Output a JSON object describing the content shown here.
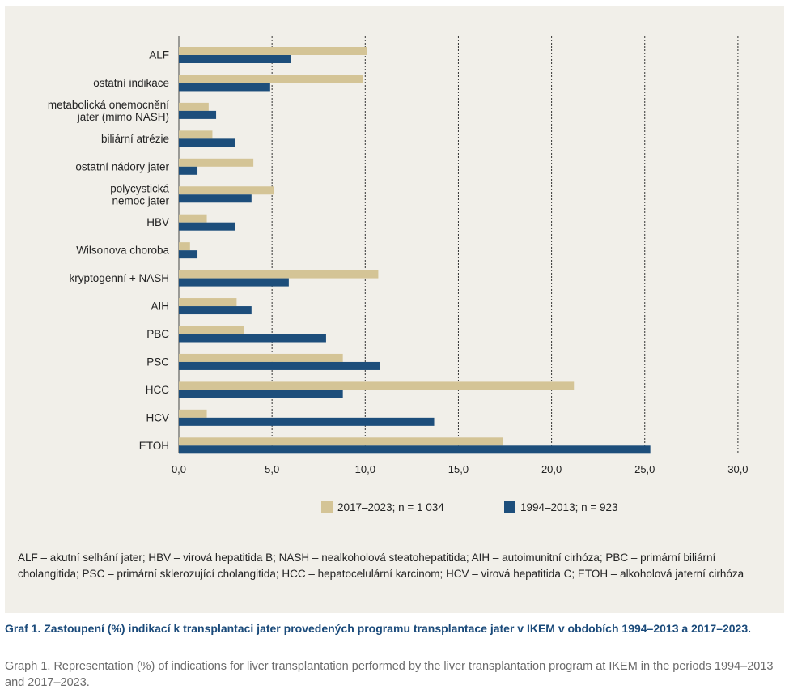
{
  "colors": {
    "series_2017": "#d4c496",
    "series_1994": "#1d4e7b",
    "panel_bg": "#f1efe9",
    "caption": "#1a4a7a"
  },
  "chart_data": {
    "type": "bar",
    "orientation": "horizontal",
    "categories": [
      "ALF",
      "ostatní indikace",
      "metabolická onemocnění\njater (mimo NASH)",
      "biliární atrézie",
      "ostatní nádory jater",
      "polycystická\nnemoc jater",
      "HBV",
      "Wilsonova choroba",
      "kryptogenní + NASH",
      "AIH",
      "PBC",
      "PSC",
      "HCC",
      "HCV",
      "ETOH"
    ],
    "series": [
      {
        "name": "2017–2023; n = 1 034",
        "color": "#d4c496",
        "values": [
          10.1,
          9.9,
          1.6,
          1.8,
          4.0,
          5.1,
          1.5,
          0.6,
          10.7,
          3.1,
          3.5,
          8.8,
          21.2,
          1.5,
          17.4
        ]
      },
      {
        "name": "1994–2013; n = 923",
        "color": "#1d4e7b",
        "values": [
          6.0,
          4.9,
          2.0,
          3.0,
          1.0,
          3.9,
          3.0,
          1.0,
          5.9,
          3.9,
          7.9,
          10.8,
          8.8,
          13.7,
          25.3
        ]
      }
    ],
    "xlim": [
      0,
      30
    ],
    "xticks": [
      "0,0",
      "5,0",
      "10,0",
      "15,0",
      "20,0",
      "25,0",
      "30,0"
    ],
    "grid": "vertical dotted",
    "legend": "bottom"
  },
  "abbreviations": "ALF – akutní selhání jater; HBV – virová hepatitida B; NASH – nealkoholová steatohepatitida; AIH – autoimunitní cirhóza; PBC – primární biliární cholangitida; PSC – primární sklerozující cholangitida; HCC – hepatocelulární karcinom; HCV – virová hepatitida C; ETOH – alkoholová jaterní cirhóza",
  "caption_cz": "Graf 1. Zastoupení (%) indikací k transplantaci jater provedených programu transplantace jater v IKEM v obdobích 1994–2013 a 2017–2023.",
  "caption_en": "Graph 1. Representation (%) of indications for liver transplantation performed by the liver transplantation program at IKEM in the periods 1994–2013 and 2017–2023."
}
